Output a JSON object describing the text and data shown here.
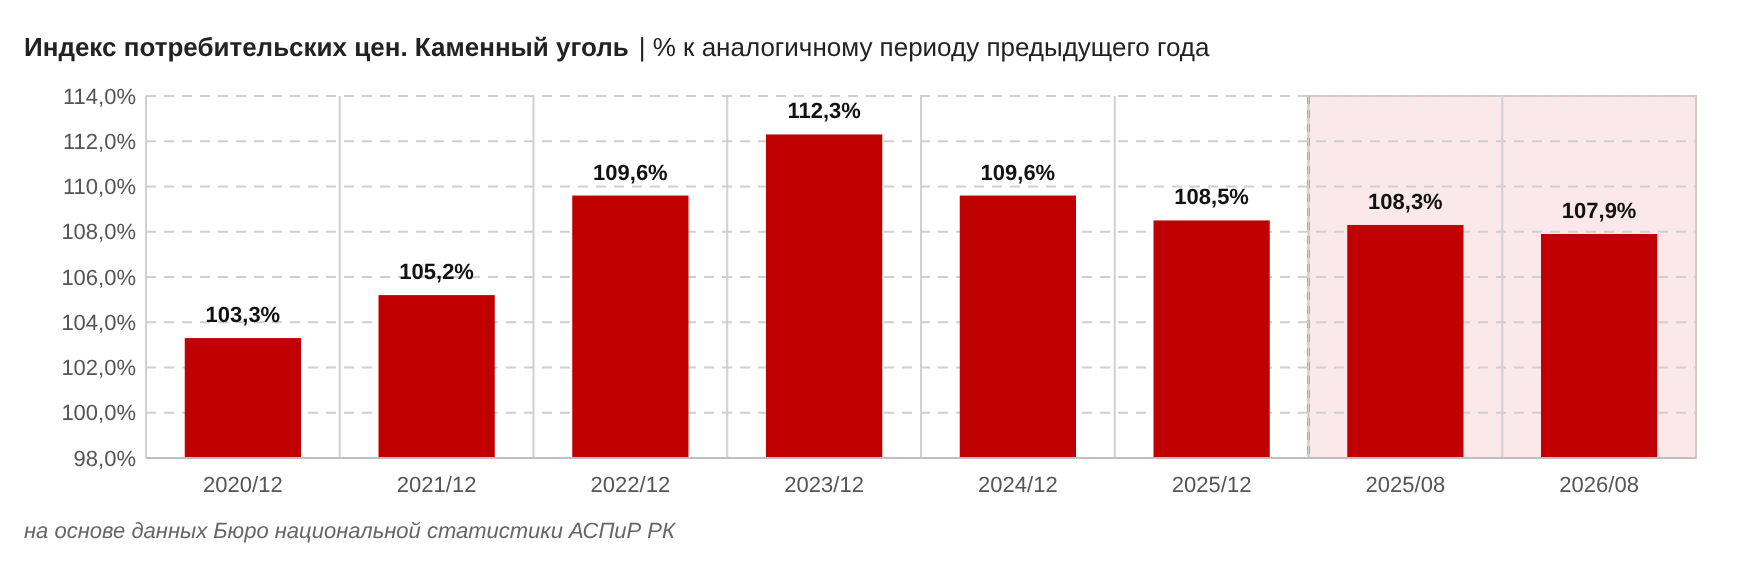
{
  "chart_data": {
    "type": "bar",
    "title": "Индекс потребительских цен. Каменный уголь",
    "subtitle": "| % к аналогичному периоду предыдущего года",
    "categories": [
      "2020/12",
      "2021/12",
      "2022/12",
      "2023/12",
      "2024/12",
      "2025/12",
      "2025/08",
      "2026/08"
    ],
    "values": [
      103.3,
      105.2,
      109.6,
      112.3,
      109.6,
      108.5,
      108.3,
      107.9
    ],
    "value_labels": [
      "103,3%",
      "105,2%",
      "109,6%",
      "112,3%",
      "109,6%",
      "108,5%",
      "108,3%",
      "107,9%"
    ],
    "color": "#c00000",
    "ylim": [
      98,
      114
    ],
    "yticks": [
      {
        "value": 98,
        "label": "98,0%"
      },
      {
        "value": 100,
        "label": "100,0%"
      },
      {
        "value": 102,
        "label": "102,0%"
      },
      {
        "value": 104,
        "label": "104,0%"
      },
      {
        "value": 106,
        "label": "106,0%"
      },
      {
        "value": 108,
        "label": "108,0%"
      },
      {
        "value": 110,
        "label": "110,0%"
      },
      {
        "value": 112,
        "label": "112,0%"
      },
      {
        "value": 114,
        "label": "114,0%"
      }
    ],
    "grid": true,
    "bands": [
      {
        "axis": "x",
        "from": "2025/08",
        "to": "2026/08",
        "color": "#fbe9e9"
      }
    ],
    "ref_lines": [
      {
        "axis": "x",
        "value": "2025/08",
        "color": "#a00000",
        "line_style": "dashed"
      }
    ],
    "annotations": [
      "на основе данных Бюро национальной статистики АСПиР РК"
    ]
  }
}
